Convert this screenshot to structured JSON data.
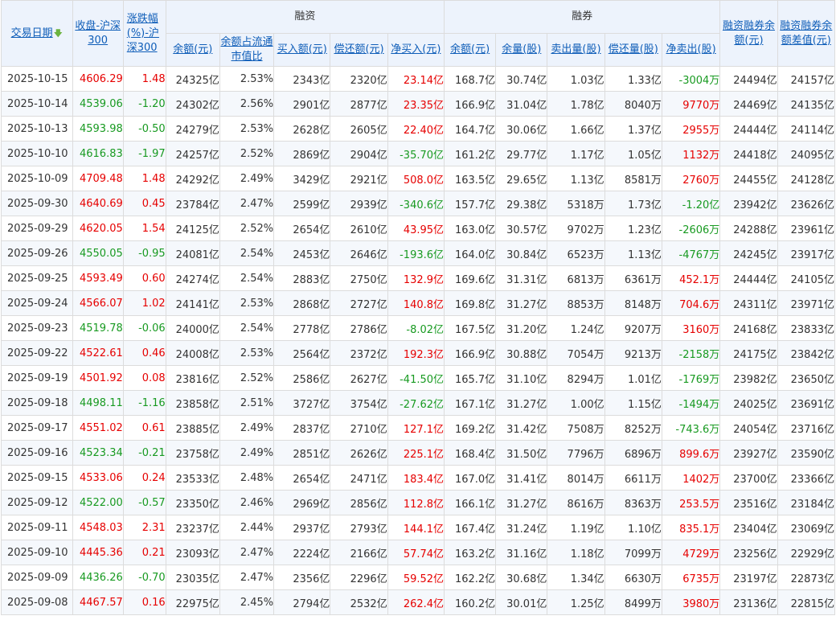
{
  "headers": {
    "date": "交易日期",
    "close": "收盘-沪深300",
    "change": "涨跌幅(%)-沪深300",
    "financing_group": "融资",
    "lending_group": "融券",
    "total_balance": "融资融券余额(元)",
    "diff": "融资融券余额差值(元)",
    "fin_balance": "余额(元)",
    "fin_ratio": "余额占流通市值比",
    "fin_buy": "买入额(元)",
    "fin_repay": "偿还额(元)",
    "fin_net": "净买入(元)",
    "sec_balance": "余额(元)",
    "sec_volume": "余量(股)",
    "sec_sell": "卖出量(股)",
    "sec_repay": "偿还量(股)",
    "sec_net": "净卖出(股)"
  },
  "colors": {
    "up": "#e60000",
    "down": "#189a21",
    "header_text": "#0e5db8",
    "header_bg": "#edf3fc"
  },
  "sort_icon": "arrow-down-icon",
  "rows": [
    [
      "2025-10-15",
      "4606.29",
      "1.48",
      "24325亿",
      "2.53%",
      "2343亿",
      "2320亿",
      "23.14亿",
      "168.7亿",
      "30.74亿",
      "1.03亿",
      "1.33亿",
      "-3004万",
      "24494亿",
      "24157亿"
    ],
    [
      "2025-10-14",
      "4539.06",
      "-1.20",
      "24302亿",
      "2.56%",
      "2901亿",
      "2877亿",
      "23.35亿",
      "166.9亿",
      "31.04亿",
      "1.78亿",
      "8040万",
      "9770万",
      "24469亿",
      "24135亿"
    ],
    [
      "2025-10-13",
      "4593.98",
      "-0.50",
      "24279亿",
      "2.53%",
      "2628亿",
      "2605亿",
      "22.40亿",
      "164.7亿",
      "30.06亿",
      "1.66亿",
      "1.37亿",
      "2955万",
      "24444亿",
      "24114亿"
    ],
    [
      "2025-10-10",
      "4616.83",
      "-1.97",
      "24257亿",
      "2.52%",
      "2869亿",
      "2904亿",
      "-35.70亿",
      "161.2亿",
      "29.77亿",
      "1.17亿",
      "1.05亿",
      "1132万",
      "24418亿",
      "24095亿"
    ],
    [
      "2025-10-09",
      "4709.48",
      "1.48",
      "24292亿",
      "2.49%",
      "3429亿",
      "2921亿",
      "508.0亿",
      "163.5亿",
      "29.65亿",
      "1.13亿",
      "8581万",
      "2760万",
      "24455亿",
      "24128亿"
    ],
    [
      "2025-09-30",
      "4640.69",
      "0.45",
      "23784亿",
      "2.47%",
      "2599亿",
      "2939亿",
      "-340.6亿",
      "157.7亿",
      "29.38亿",
      "5318万",
      "1.73亿",
      "-1.20亿",
      "23942亿",
      "23626亿"
    ],
    [
      "2025-09-29",
      "4620.05",
      "1.54",
      "24125亿",
      "2.52%",
      "2654亿",
      "2610亿",
      "43.95亿",
      "163.0亿",
      "30.57亿",
      "9702万",
      "1.23亿",
      "-2606万",
      "24288亿",
      "23961亿"
    ],
    [
      "2025-09-26",
      "4550.05",
      "-0.95",
      "24081亿",
      "2.54%",
      "2453亿",
      "2646亿",
      "-193.6亿",
      "164.0亿",
      "30.84亿",
      "6523万",
      "1.13亿",
      "-4767万",
      "24245亿",
      "23917亿"
    ],
    [
      "2025-09-25",
      "4593.49",
      "0.60",
      "24274亿",
      "2.54%",
      "2883亿",
      "2750亿",
      "132.9亿",
      "169.6亿",
      "31.31亿",
      "6813万",
      "6361万",
      "452.1万",
      "24444亿",
      "24105亿"
    ],
    [
      "2025-09-24",
      "4566.07",
      "1.02",
      "24141亿",
      "2.53%",
      "2868亿",
      "2727亿",
      "140.8亿",
      "169.8亿",
      "31.27亿",
      "8853万",
      "8148万",
      "704.6万",
      "24311亿",
      "23971亿"
    ],
    [
      "2025-09-23",
      "4519.78",
      "-0.06",
      "24000亿",
      "2.54%",
      "2778亿",
      "2786亿",
      "-8.02亿",
      "167.5亿",
      "31.20亿",
      "1.24亿",
      "9207万",
      "3160万",
      "24168亿",
      "23833亿"
    ],
    [
      "2025-09-22",
      "4522.61",
      "0.46",
      "24008亿",
      "2.53%",
      "2564亿",
      "2372亿",
      "192.3亿",
      "166.9亿",
      "30.88亿",
      "7054万",
      "9213万",
      "-2158万",
      "24175亿",
      "23842亿"
    ],
    [
      "2025-09-19",
      "4501.92",
      "0.08",
      "23816亿",
      "2.52%",
      "2586亿",
      "2627亿",
      "-41.50亿",
      "165.7亿",
      "31.10亿",
      "8294万",
      "1.01亿",
      "-1769万",
      "23982亿",
      "23650亿"
    ],
    [
      "2025-09-18",
      "4498.11",
      "-1.16",
      "23858亿",
      "2.51%",
      "3727亿",
      "3754亿",
      "-27.62亿",
      "167.1亿",
      "31.27亿",
      "1.00亿",
      "1.15亿",
      "-1494万",
      "24025亿",
      "23691亿"
    ],
    [
      "2025-09-17",
      "4551.02",
      "0.61",
      "23885亿",
      "2.49%",
      "2837亿",
      "2710亿",
      "127.1亿",
      "169.2亿",
      "31.42亿",
      "7508万",
      "8252万",
      "-743.6万",
      "24054亿",
      "23716亿"
    ],
    [
      "2025-09-16",
      "4523.34",
      "-0.21",
      "23758亿",
      "2.49%",
      "2851亿",
      "2626亿",
      "225.1亿",
      "168.4亿",
      "31.50亿",
      "7796万",
      "6896万",
      "899.6万",
      "23927亿",
      "23590亿"
    ],
    [
      "2025-09-15",
      "4533.06",
      "0.24",
      "23533亿",
      "2.48%",
      "2654亿",
      "2471亿",
      "183.4亿",
      "167.0亿",
      "31.41亿",
      "8014万",
      "6611万",
      "1402万",
      "23700亿",
      "23366亿"
    ],
    [
      "2025-09-12",
      "4522.00",
      "-0.57",
      "23350亿",
      "2.46%",
      "2969亿",
      "2856亿",
      "112.8亿",
      "166.1亿",
      "31.27亿",
      "8616万",
      "8363万",
      "253.5万",
      "23516亿",
      "23184亿"
    ],
    [
      "2025-09-11",
      "4548.03",
      "2.31",
      "23237亿",
      "2.44%",
      "2937亿",
      "2793亿",
      "144.1亿",
      "167.4亿",
      "31.24亿",
      "1.19亿",
      "1.10亿",
      "835.1万",
      "23404亿",
      "23069亿"
    ],
    [
      "2025-09-10",
      "4445.36",
      "0.21",
      "23093亿",
      "2.47%",
      "2224亿",
      "2166亿",
      "57.74亿",
      "163.2亿",
      "31.16亿",
      "1.18亿",
      "7099万",
      "4729万",
      "23256亿",
      "22929亿"
    ],
    [
      "2025-09-09",
      "4436.26",
      "-0.70",
      "23035亿",
      "2.47%",
      "2356亿",
      "2296亿",
      "59.52亿",
      "162.2亿",
      "30.68亿",
      "1.34亿",
      "6630万",
      "6735万",
      "23197亿",
      "22873亿"
    ],
    [
      "2025-09-08",
      "4467.57",
      "0.16",
      "22975亿",
      "2.45%",
      "2794亿",
      "2532亿",
      "262.4亿",
      "160.2亿",
      "30.01亿",
      "1.25亿",
      "8499万",
      "3980万",
      "23136亿",
      "22815亿"
    ]
  ]
}
